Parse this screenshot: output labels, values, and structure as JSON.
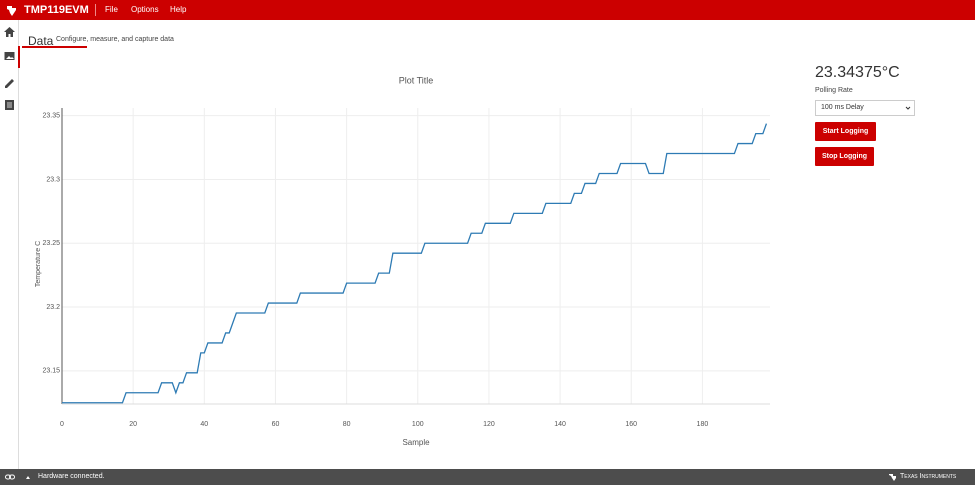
{
  "app": {
    "title": "TMP119EVM",
    "menu": [
      "File",
      "Options",
      "Help"
    ]
  },
  "page": {
    "heading": "Data",
    "subheading": "Configure, measure, and capture data"
  },
  "chart_data": {
    "type": "line",
    "title": "Plot Title",
    "x_label": "Sample",
    "y_label": "Temperature C",
    "color": "#2e7bb4",
    "grid": true,
    "x": [
      0,
      17,
      18,
      27,
      28,
      31,
      32,
      33,
      34,
      35,
      38,
      39,
      40,
      41,
      45,
      46,
      47,
      48,
      49,
      57,
      58,
      66,
      67,
      79,
      80,
      88,
      89,
      92,
      93,
      101,
      102,
      114,
      115,
      118,
      119,
      126,
      127,
      135,
      136,
      143,
      144,
      146,
      147,
      150,
      151,
      156,
      157,
      164,
      165,
      169,
      170,
      189,
      190,
      194,
      195,
      197,
      198
    ],
    "values": [
      23.125,
      23.125,
      23.1328125,
      23.1328125,
      23.140625,
      23.140625,
      23.1328125,
      23.140625,
      23.140625,
      23.1484375,
      23.1484375,
      23.1640625,
      23.1640625,
      23.171875,
      23.171875,
      23.1796875,
      23.1796875,
      23.1875,
      23.1953125,
      23.1953125,
      23.203125,
      23.203125,
      23.2109375,
      23.2109375,
      23.21875,
      23.21875,
      23.2265625,
      23.2265625,
      23.2421875,
      23.2421875,
      23.25,
      23.25,
      23.2578125,
      23.2578125,
      23.265625,
      23.265625,
      23.2734375,
      23.2734375,
      23.28125,
      23.28125,
      23.2890625,
      23.2890625,
      23.296875,
      23.296875,
      23.3046875,
      23.3046875,
      23.3125,
      23.3125,
      23.3046875,
      23.3046875,
      23.3203125,
      23.3203125,
      23.328125,
      23.328125,
      23.3359375,
      23.3359375,
      23.34375
    ],
    "xlim": [
      0,
      199
    ],
    "xticks": [
      0,
      20,
      40,
      60,
      80,
      100,
      120,
      140,
      160,
      180
    ],
    "ylim": [
      23.124,
      23.356
    ],
    "yticks": [
      23.15,
      23.2,
      23.25,
      23.3,
      23.35
    ]
  },
  "controls": {
    "reading": "23.34375°C",
    "polling_label": "Polling Rate",
    "polling_value": "100 ms Delay",
    "buttons": [
      "Start Logging",
      "Stop Logging"
    ]
  },
  "status": {
    "message": "Hardware connected.",
    "brand": "Texas Instruments"
  }
}
